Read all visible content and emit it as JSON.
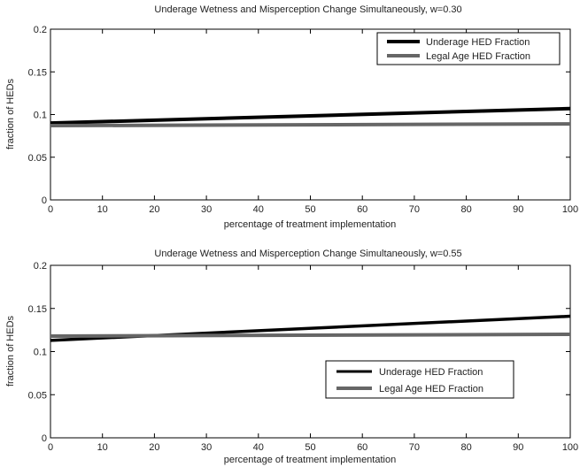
{
  "chart_data": [
    {
      "type": "line",
      "title": "Underage Wetness and Misperception Change Simultaneously, w=0.30",
      "xlabel": "percentage of treatment implementation",
      "ylabel": "fraction of HEDs",
      "xlim": [
        0,
        100
      ],
      "ylim": [
        0,
        0.2
      ],
      "xticks": [
        "0",
        "10",
        "20",
        "30",
        "40",
        "50",
        "60",
        "70",
        "80",
        "90",
        "100"
      ],
      "yticks": [
        "0",
        "0.05",
        "0.1",
        "0.15",
        "0.2"
      ],
      "grid": false,
      "legend_position": "top-right",
      "series": [
        {
          "name": "Underage HED Fraction",
          "color": "#000000",
          "x": [
            0,
            100
          ],
          "y": [
            0.09,
            0.107
          ]
        },
        {
          "name": "Legal Age HED Fraction",
          "color": "#666666",
          "x": [
            0,
            100
          ],
          "y": [
            0.087,
            0.089
          ]
        }
      ]
    },
    {
      "type": "line",
      "title": "Underage Wetness and Misperception Change Simultaneously, w=0.55",
      "xlabel": "percentage of treatment implementation",
      "ylabel": "fraction of HEDs",
      "xlim": [
        0,
        100
      ],
      "ylim": [
        0,
        0.2
      ],
      "xticks": [
        "0",
        "10",
        "20",
        "30",
        "40",
        "50",
        "60",
        "70",
        "80",
        "90",
        "100"
      ],
      "yticks": [
        "0",
        "0.05",
        "0.1",
        "0.15",
        "0.2"
      ],
      "grid": false,
      "legend_position": "bottom-right",
      "series": [
        {
          "name": "Underage HED Fraction",
          "color": "#000000",
          "x": [
            0,
            100
          ],
          "y": [
            0.113,
            0.141
          ]
        },
        {
          "name": "Legal Age HED Fraction",
          "color": "#666666",
          "x": [
            0,
            100
          ],
          "y": [
            0.118,
            0.12
          ]
        }
      ]
    }
  ]
}
